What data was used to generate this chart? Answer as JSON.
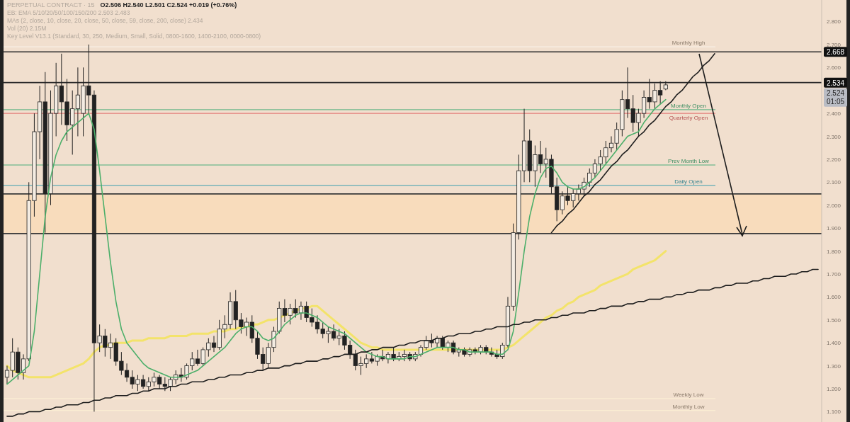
{
  "chart_data": {
    "type": "candlestick",
    "title": "PERPETUAL CONTRACT · 15",
    "subtitle": "O2.506 H2.540 L2.501 C2.524 +0.019 (+0.76%)",
    "categories": [
      null,
      null,
      null,
      null,
      null,
      null,
      null,
      null,
      null,
      null,
      null,
      null,
      null,
      null,
      null,
      null,
      null,
      null,
      null,
      null,
      null,
      null,
      null,
      null,
      null,
      null,
      null,
      null,
      null,
      null,
      null,
      null,
      null,
      null,
      null,
      null,
      null,
      null,
      null,
      null,
      null,
      null,
      null,
      null,
      null,
      null,
      null,
      null,
      null,
      null,
      null,
      null,
      null,
      null,
      null,
      null,
      null,
      null,
      null,
      null,
      null,
      null,
      null,
      null,
      null,
      null,
      null,
      null,
      null,
      null,
      null,
      null,
      null,
      null,
      null,
      null,
      null,
      null,
      null,
      null,
      null,
      null,
      null,
      null,
      null,
      null,
      null,
      null,
      null,
      null,
      null,
      null,
      null,
      null,
      null,
      null,
      null,
      null,
      null,
      null,
      null,
      null,
      null,
      null,
      null,
      null,
      null,
      null,
      null,
      null,
      null,
      null,
      null,
      null,
      null,
      null,
      null,
      null,
      null,
      null,
      null,
      null,
      null,
      null,
      null,
      null,
      null,
      null,
      null,
      null,
      null,
      null,
      null,
      null,
      null,
      null,
      null,
      null,
      null,
      null,
      null,
      null,
      null,
      null,
      null,
      null,
      null,
      null,
      null,
      null
    ],
    "ohlc": [
      [
        1.25,
        1.3,
        1.22,
        1.28
      ],
      [
        1.28,
        1.42,
        1.25,
        1.36
      ],
      [
        1.36,
        1.38,
        1.24,
        1.27
      ],
      [
        1.27,
        1.35,
        1.24,
        1.33
      ],
      [
        1.33,
        2.1,
        1.32,
        2.02
      ],
      [
        2.02,
        2.4,
        1.95,
        2.32
      ],
      [
        2.32,
        2.52,
        2.2,
        2.45
      ],
      [
        2.45,
        2.58,
        1.88,
        2.05
      ],
      [
        2.05,
        2.5,
        2.0,
        2.4
      ],
      [
        2.4,
        2.62,
        2.3,
        2.52
      ],
      [
        2.52,
        2.66,
        2.35,
        2.45
      ],
      [
        2.45,
        2.55,
        2.28,
        2.35
      ],
      [
        2.35,
        2.5,
        2.22,
        2.42
      ],
      [
        2.42,
        2.6,
        2.3,
        2.48
      ],
      [
        2.4,
        2.6,
        2.3,
        2.52
      ],
      [
        2.52,
        2.7,
        2.4,
        2.48
      ],
      [
        2.48,
        2.5,
        1.1,
        1.4
      ],
      [
        1.4,
        1.48,
        1.36,
        1.43
      ],
      [
        1.43,
        1.46,
        1.34,
        1.38
      ],
      [
        1.38,
        1.44,
        1.33,
        1.4
      ],
      [
        1.4,
        1.42,
        1.3,
        1.32
      ],
      [
        1.32,
        1.36,
        1.26,
        1.28
      ],
      [
        1.28,
        1.31,
        1.23,
        1.25
      ],
      [
        1.25,
        1.28,
        1.2,
        1.22
      ],
      [
        1.22,
        1.26,
        1.19,
        1.24
      ],
      [
        1.24,
        1.26,
        1.2,
        1.21
      ],
      [
        1.21,
        1.25,
        1.19,
        1.23
      ],
      [
        1.23,
        1.27,
        1.21,
        1.25
      ],
      [
        1.25,
        1.26,
        1.2,
        1.22
      ],
      [
        1.22,
        1.25,
        1.19,
        1.21
      ],
      [
        1.21,
        1.25,
        1.19,
        1.24
      ],
      [
        1.24,
        1.28,
        1.22,
        1.26
      ],
      [
        1.26,
        1.29,
        1.23,
        1.25
      ],
      [
        1.25,
        1.31,
        1.24,
        1.3
      ],
      [
        1.3,
        1.36,
        1.28,
        1.33
      ],
      [
        1.33,
        1.37,
        1.3,
        1.31
      ],
      [
        1.31,
        1.38,
        1.3,
        1.37
      ],
      [
        1.37,
        1.42,
        1.34,
        1.4
      ],
      [
        1.4,
        1.43,
        1.36,
        1.38
      ],
      [
        1.38,
        1.5,
        1.37,
        1.46
      ],
      [
        1.46,
        1.52,
        1.42,
        1.48
      ],
      [
        1.48,
        1.62,
        1.46,
        1.58
      ],
      [
        1.58,
        1.63,
        1.46,
        1.5
      ],
      [
        1.5,
        1.53,
        1.44,
        1.47
      ],
      [
        1.47,
        1.51,
        1.43,
        1.49
      ],
      [
        1.49,
        1.52,
        1.4,
        1.42
      ],
      [
        1.42,
        1.45,
        1.33,
        1.35
      ],
      [
        1.35,
        1.38,
        1.28,
        1.31
      ],
      [
        1.31,
        1.4,
        1.29,
        1.38
      ],
      [
        1.38,
        1.47,
        1.36,
        1.45
      ],
      [
        1.45,
        1.58,
        1.44,
        1.55
      ],
      [
        1.55,
        1.59,
        1.49,
        1.52
      ],
      [
        1.52,
        1.57,
        1.48,
        1.55
      ],
      [
        1.55,
        1.59,
        1.51,
        1.53
      ],
      [
        1.53,
        1.58,
        1.5,
        1.56
      ],
      [
        1.56,
        1.58,
        1.49,
        1.51
      ],
      [
        1.51,
        1.55,
        1.47,
        1.49
      ],
      [
        1.49,
        1.52,
        1.44,
        1.46
      ],
      [
        1.46,
        1.49,
        1.42,
        1.44
      ],
      [
        1.44,
        1.47,
        1.4,
        1.45
      ],
      [
        1.45,
        1.48,
        1.41,
        1.42
      ],
      [
        1.42,
        1.46,
        1.39,
        1.43
      ],
      [
        1.43,
        1.45,
        1.37,
        1.39
      ],
      [
        1.39,
        1.41,
        1.33,
        1.35
      ],
      [
        1.35,
        1.37,
        1.28,
        1.3
      ],
      [
        1.3,
        1.34,
        1.26,
        1.31
      ],
      [
        1.31,
        1.35,
        1.29,
        1.33
      ],
      [
        1.33,
        1.36,
        1.31,
        1.32
      ],
      [
        1.32,
        1.35,
        1.3,
        1.34
      ],
      [
        1.34,
        1.37,
        1.32,
        1.33
      ],
      [
        1.33,
        1.36,
        1.31,
        1.35
      ],
      [
        1.35,
        1.38,
        1.32,
        1.33
      ],
      [
        1.33,
        1.36,
        1.32,
        1.34
      ],
      [
        1.34,
        1.37,
        1.32,
        1.35
      ],
      [
        1.35,
        1.36,
        1.32,
        1.33
      ],
      [
        1.33,
        1.36,
        1.32,
        1.35
      ],
      [
        1.35,
        1.39,
        1.34,
        1.38
      ],
      [
        1.38,
        1.43,
        1.37,
        1.41
      ],
      [
        1.41,
        1.44,
        1.38,
        1.4
      ],
      [
        1.4,
        1.43,
        1.38,
        1.42
      ],
      [
        1.42,
        1.43,
        1.37,
        1.38
      ],
      [
        1.38,
        1.41,
        1.36,
        1.4
      ],
      [
        1.4,
        1.41,
        1.35,
        1.36
      ],
      [
        1.36,
        1.38,
        1.34,
        1.37
      ],
      [
        1.37,
        1.38,
        1.34,
        1.35
      ],
      [
        1.35,
        1.38,
        1.34,
        1.37
      ],
      [
        1.37,
        1.38,
        1.35,
        1.36
      ],
      [
        1.36,
        1.39,
        1.35,
        1.38
      ],
      [
        1.38,
        1.39,
        1.35,
        1.36
      ],
      [
        1.36,
        1.38,
        1.34,
        1.35
      ],
      [
        1.35,
        1.37,
        1.33,
        1.34
      ],
      [
        1.34,
        1.4,
        1.33,
        1.39
      ],
      [
        1.39,
        1.6,
        1.38,
        1.56
      ],
      [
        1.56,
        1.92,
        1.54,
        1.88
      ],
      [
        1.88,
        2.22,
        1.85,
        2.15
      ],
      [
        2.15,
        2.42,
        2.1,
        2.28
      ],
      [
        2.28,
        2.33,
        2.1,
        2.15
      ],
      [
        2.15,
        2.26,
        2.08,
        2.22
      ],
      [
        2.22,
        2.28,
        2.14,
        2.18
      ],
      [
        2.18,
        2.25,
        2.12,
        2.2
      ],
      [
        2.2,
        2.22,
        2.05,
        2.08
      ],
      [
        2.08,
        2.12,
        1.93,
        1.98
      ],
      [
        1.98,
        2.06,
        1.96,
        2.04
      ],
      [
        2.04,
        2.08,
        2.0,
        2.02
      ],
      [
        2.02,
        2.07,
        1.99,
        2.05
      ],
      [
        2.05,
        2.09,
        2.02,
        2.07
      ],
      [
        2.07,
        2.12,
        2.04,
        2.1
      ],
      [
        2.1,
        2.16,
        2.08,
        2.14
      ],
      [
        2.14,
        2.2,
        2.12,
        2.18
      ],
      [
        2.18,
        2.24,
        2.15,
        2.21
      ],
      [
        2.21,
        2.28,
        2.18,
        2.25
      ],
      [
        2.25,
        2.3,
        2.23,
        2.27
      ],
      [
        2.27,
        2.36,
        2.24,
        2.33
      ],
      [
        2.33,
        2.5,
        2.3,
        2.46
      ],
      [
        2.46,
        2.6,
        2.38,
        2.42
      ],
      [
        2.42,
        2.48,
        2.32,
        2.36
      ],
      [
        2.36,
        2.42,
        2.3,
        2.4
      ],
      [
        2.4,
        2.5,
        2.38,
        2.47
      ],
      [
        2.47,
        2.55,
        2.42,
        2.45
      ],
      [
        2.45,
        2.53,
        2.42,
        2.5
      ],
      [
        2.5,
        2.54,
        2.44,
        2.48
      ],
      [
        2.506,
        2.54,
        2.501,
        2.524
      ],
      null,
      null,
      null,
      null,
      null,
      null,
      null,
      null,
      null,
      null,
      null,
      null,
      null,
      null,
      null,
      null,
      null,
      null,
      null,
      null,
      null,
      null,
      null,
      null,
      null,
      null,
      null,
      null
    ],
    "series": [
      {
        "type": "line",
        "color": "#4caf6a",
        "values": [
          1.22,
          1.24,
          1.26,
          1.28,
          1.3,
          1.45,
          1.7,
          1.95,
          2.12,
          2.22,
          2.28,
          2.32,
          2.34,
          2.36,
          2.38,
          2.4,
          2.33,
          2.15,
          1.95,
          1.75,
          1.58,
          1.46,
          1.4,
          1.37,
          1.34,
          1.31,
          1.29,
          1.28,
          1.27,
          1.26,
          1.25,
          1.25,
          1.25,
          1.26,
          1.27,
          1.28,
          1.3,
          1.32,
          1.34,
          1.36,
          1.38,
          1.41,
          1.44,
          1.46,
          1.47,
          1.47,
          1.45,
          1.42,
          1.41,
          1.42,
          1.45,
          1.48,
          1.5,
          1.52,
          1.53,
          1.53,
          1.52,
          1.51,
          1.49,
          1.47,
          1.46,
          1.45,
          1.44,
          1.42,
          1.4,
          1.38,
          1.36,
          1.35,
          1.34,
          1.34,
          1.33,
          1.33,
          1.33,
          1.33,
          1.34,
          1.34,
          1.35,
          1.36,
          1.37,
          1.38,
          1.38,
          1.38,
          1.38,
          1.37,
          1.37,
          1.36,
          1.36,
          1.36,
          1.36,
          1.36,
          1.35,
          1.35,
          1.37,
          1.45,
          1.62,
          1.8,
          1.95,
          2.05,
          2.12,
          2.16,
          2.17,
          2.14,
          2.1,
          2.08,
          2.07,
          2.07,
          2.08,
          2.1,
          2.12,
          2.15,
          2.18,
          2.21,
          2.24,
          2.27,
          2.3,
          2.31,
          2.32,
          2.36,
          2.39,
          2.42,
          2.44,
          2.46,
          null,
          null,
          null,
          null,
          null,
          null,
          null,
          null,
          null,
          null,
          null,
          null,
          null,
          null,
          null,
          null,
          null,
          null,
          null,
          null,
          null,
          null,
          null,
          null,
          null,
          null,
          null,
          null
        ]
      },
      {
        "type": "line",
        "color": "#f3e36a",
        "values": [
          1.3,
          1.28,
          1.27,
          1.26,
          1.25,
          1.25,
          1.25,
          1.25,
          1.25,
          1.26,
          1.27,
          1.28,
          1.29,
          1.3,
          1.31,
          1.33,
          1.36,
          1.38,
          1.39,
          1.39,
          1.4,
          1.4,
          1.4,
          1.41,
          1.41,
          1.41,
          1.42,
          1.42,
          1.42,
          1.42,
          1.43,
          1.43,
          1.43,
          1.43,
          1.44,
          1.44,
          1.44,
          1.44,
          1.45,
          1.45,
          1.45,
          1.46,
          1.46,
          1.47,
          1.47,
          1.48,
          1.48,
          1.49,
          1.5,
          1.5,
          1.51,
          1.52,
          1.53,
          1.54,
          1.55,
          1.55,
          1.56,
          1.56,
          1.54,
          1.52,
          1.5,
          1.48,
          1.46,
          1.44,
          1.42,
          1.4,
          1.39,
          1.38,
          1.38,
          1.37,
          1.37,
          1.37,
          1.37,
          1.37,
          1.37,
          1.37,
          1.37,
          1.37,
          1.37,
          1.37,
          1.37,
          1.37,
          1.37,
          1.37,
          1.37,
          1.37,
          1.37,
          1.37,
          1.37,
          1.37,
          1.37,
          1.37,
          1.38,
          1.39,
          1.41,
          1.43,
          1.45,
          1.47,
          1.49,
          1.51,
          1.52,
          1.54,
          1.55,
          1.57,
          1.58,
          1.6,
          1.61,
          1.62,
          1.63,
          1.65,
          1.66,
          1.67,
          1.68,
          1.69,
          1.7,
          1.72,
          1.73,
          1.74,
          1.75,
          1.76,
          1.78,
          1.8,
          null,
          null,
          null,
          null,
          null,
          null,
          null,
          null,
          null,
          null,
          null,
          null,
          null,
          null,
          null,
          null,
          null,
          null,
          null,
          null,
          null,
          null,
          null,
          null,
          null,
          null,
          null,
          null
        ]
      },
      {
        "type": "line",
        "color": "#1e1e1e",
        "values": [
          1.08,
          1.08,
          1.09,
          1.09,
          1.1,
          1.1,
          1.1,
          1.11,
          1.11,
          1.12,
          1.12,
          1.13,
          1.13,
          1.13,
          1.14,
          1.14,
          1.15,
          1.15,
          1.16,
          1.16,
          1.17,
          1.17,
          1.17,
          1.18,
          1.18,
          1.19,
          1.19,
          1.2,
          1.2,
          1.2,
          1.21,
          1.21,
          1.22,
          1.22,
          1.23,
          1.23,
          1.23,
          1.24,
          1.24,
          1.25,
          1.25,
          1.26,
          1.26,
          1.26,
          1.27,
          1.27,
          1.28,
          1.28,
          1.29,
          1.29,
          1.29,
          1.3,
          1.3,
          1.31,
          1.31,
          1.32,
          1.32,
          1.32,
          1.33,
          1.33,
          1.34,
          1.34,
          1.35,
          1.35,
          1.35,
          1.36,
          1.36,
          1.37,
          1.37,
          1.38,
          1.38,
          1.38,
          1.39,
          1.39,
          1.4,
          1.4,
          1.41,
          1.41,
          1.41,
          1.42,
          1.42,
          1.43,
          1.43,
          1.44,
          1.44,
          1.44,
          1.45,
          1.45,
          1.46,
          1.46,
          1.47,
          1.47,
          1.47,
          1.48,
          1.48,
          1.49,
          1.49,
          1.5,
          1.5,
          1.5,
          1.51,
          1.51,
          1.52,
          1.52,
          1.53,
          1.53,
          1.53,
          1.54,
          1.54,
          1.55,
          1.55,
          1.56,
          1.56,
          1.56,
          1.57,
          1.57,
          1.58,
          1.58,
          1.59,
          1.59,
          1.59,
          1.6,
          1.6,
          1.61,
          1.61,
          1.62,
          1.62,
          1.63,
          1.63,
          1.63,
          1.64,
          1.64,
          1.65,
          1.65,
          1.66,
          1.66,
          1.66,
          1.67,
          1.67,
          1.68,
          1.68,
          1.69,
          1.69,
          1.69,
          1.7,
          1.7,
          1.71,
          1.71,
          1.72,
          1.72
        ]
      },
      {
        "type": "line",
        "color": "#1e1e1e",
        "values": [
          null,
          null,
          null,
          null,
          null,
          null,
          null,
          null,
          null,
          null,
          null,
          null,
          null,
          null,
          null,
          null,
          null,
          null,
          null,
          null,
          null,
          null,
          null,
          null,
          null,
          null,
          null,
          null,
          null,
          null,
          null,
          null,
          null,
          null,
          null,
          null,
          null,
          null,
          null,
          null,
          null,
          null,
          null,
          null,
          null,
          null,
          null,
          null,
          null,
          null,
          null,
          null,
          null,
          null,
          null,
          null,
          null,
          null,
          null,
          null,
          null,
          null,
          null,
          null,
          null,
          null,
          null,
          null,
          null,
          null,
          null,
          null,
          null,
          null,
          null,
          null,
          null,
          null,
          null,
          null,
          null,
          null,
          null,
          null,
          null,
          null,
          null,
          null,
          null,
          null,
          null,
          null,
          null,
          null,
          null,
          null,
          null,
          null,
          null,
          null,
          1.88,
          1.91,
          1.93,
          1.96,
          1.98,
          2.01,
          2.04,
          2.06,
          2.09,
          2.11,
          2.14,
          2.17,
          2.19,
          2.22,
          2.24,
          2.27,
          2.3,
          2.32,
          2.35,
          2.37,
          2.4,
          2.43,
          2.45,
          2.48,
          2.5,
          2.53,
          2.56,
          2.58,
          2.61,
          2.63,
          2.66,
          null,
          null,
          null,
          null,
          null,
          null,
          null,
          null,
          null,
          null,
          null,
          null,
          null,
          null,
          null,
          null,
          null,
          null,
          null
        ]
      }
    ],
    "ylim": [
      1.055,
      2.894
    ],
    "yticks": [
      {
        "value": 1.1,
        "label": "1.100"
      },
      {
        "value": 1.2,
        "label": "1.200"
      },
      {
        "value": 1.3,
        "label": "1.300"
      },
      {
        "value": 1.4,
        "label": "1.400"
      },
      {
        "value": 1.5,
        "label": "1.500"
      },
      {
        "value": 1.6,
        "label": "1.600"
      },
      {
        "value": 1.7,
        "label": "1.700"
      },
      {
        "value": 1.8,
        "label": "1.800"
      },
      {
        "value": 1.9,
        "label": "1.900"
      },
      {
        "value": 2.0,
        "label": "2.000"
      },
      {
        "value": 2.1,
        "label": "2.100"
      },
      {
        "value": 2.2,
        "label": "2.200"
      },
      {
        "value": 2.3,
        "label": "2.300"
      },
      {
        "value": 2.4,
        "label": "2.400"
      },
      {
        "value": 2.6,
        "label": "2.600"
      },
      {
        "value": 2.7,
        "label": "2.700"
      },
      {
        "value": 2.8,
        "label": "2.800"
      }
    ],
    "bands": [
      {
        "axis": "y",
        "from": 1.876,
        "to": 2.049,
        "color": "#f8dcbc"
      }
    ],
    "ref_lines": [
      {
        "axis": "y",
        "value": 2.69,
        "label": "Monthly High",
        "color": "#fbf4ec"
      },
      {
        "axis": "y",
        "value": 2.668,
        "label": "2.668",
        "color": "#2a2a2a"
      },
      {
        "axis": "y",
        "value": 2.534,
        "label": "2.534",
        "color": "#2a2a2a"
      },
      {
        "axis": "y",
        "value": 2.416,
        "label": "Monthly Open",
        "color": "#4caf7a"
      },
      {
        "axis": "y",
        "value": 2.4,
        "label": "Quarterly Open",
        "color": "#e06666"
      },
      {
        "axis": "y",
        "value": 2.175,
        "label": "Prev Month Low",
        "color": "#4caf7a"
      },
      {
        "axis": "y",
        "value": 2.086,
        "label": "Daily Open",
        "color": "#3a9fb0"
      },
      {
        "axis": "y",
        "value": 2.049,
        "color": "#3a3a3a"
      },
      {
        "axis": "y",
        "value": 1.876,
        "color": "#3a3a3a"
      },
      {
        "axis": "y",
        "value": 1.157,
        "label": "Weekly Low",
        "color": "#fff3d6"
      },
      {
        "axis": "y",
        "value": 1.105,
        "label": "Monthly Low",
        "color": "#fff3d6"
      }
    ],
    "annotations": [
      "EB: EMA 5/10/20/50/100/150/200 2.503 2.483",
      "MAs (2, close, 10, close, 20, close, 50, close, 59, close, 200, close) 2.434",
      "Vol (20) 2.15M",
      "Key Level V13.1 (Standard, 30, 250, Medium, Small, Solid, 0800-1600, 1400-2100, 0000-0800)",
      "2.524",
      "01:05"
    ]
  }
}
